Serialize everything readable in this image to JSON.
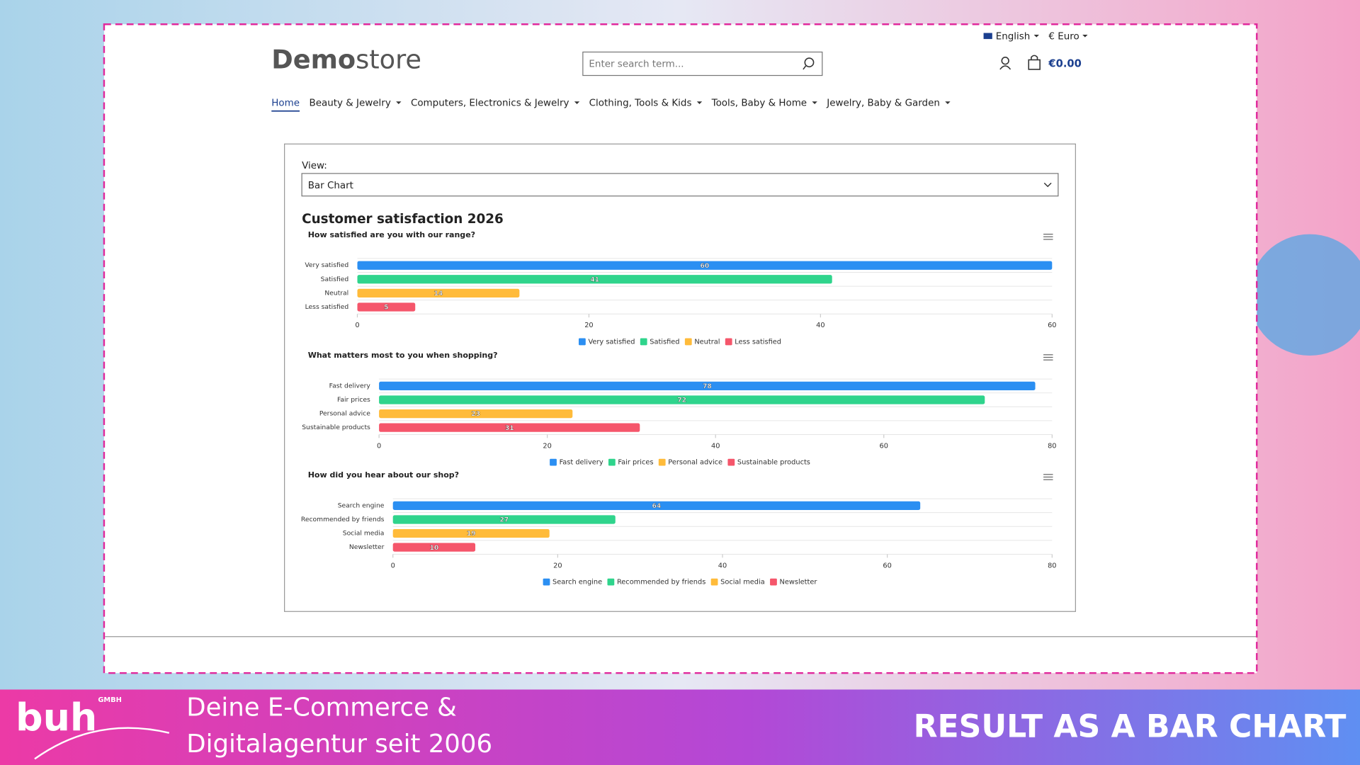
{
  "header": {
    "logo": {
      "bold": "Demo",
      "light": "store"
    },
    "search_placeholder": "Enter search term...",
    "language": "English",
    "currency": "€ Euro",
    "cart_total": "€0.00"
  },
  "nav": {
    "items": [
      "Home",
      "Beauty & Jewelry",
      "Computers, Electronics & Jewelry",
      "Clothing, Tools & Kids",
      "Tools, Baby & Home",
      "Jewelry, Baby & Garden"
    ]
  },
  "view": {
    "label": "View:",
    "selected": "Bar Chart"
  },
  "heading": "Customer satisfaction 2026",
  "chart_data": [
    {
      "type": "bar",
      "orientation": "horizontal",
      "title": "How satisfied are you with our range?",
      "categories": [
        "Very satisfied",
        "Satisfied",
        "Neutral",
        "Less satisfied"
      ],
      "values": [
        60,
        41,
        14,
        5
      ],
      "colors": [
        "#2b8ff2",
        "#2fd48c",
        "#ffbb3a",
        "#f5566b"
      ],
      "xlim": [
        0,
        60
      ],
      "xticks": [
        0,
        20,
        40,
        60
      ],
      "legend": "bottom"
    },
    {
      "type": "bar",
      "orientation": "horizontal",
      "title": "What matters most to you when shopping?",
      "categories": [
        "Fast delivery",
        "Fair prices",
        "Personal advice",
        "Sustainable products"
      ],
      "values": [
        78,
        72,
        23,
        31
      ],
      "colors": [
        "#2b8ff2",
        "#2fd48c",
        "#ffbb3a",
        "#f5566b"
      ],
      "xlim": [
        0,
        80
      ],
      "xticks": [
        0,
        20,
        40,
        60,
        80
      ],
      "legend": "bottom"
    },
    {
      "type": "bar",
      "orientation": "horizontal",
      "title": "How did you hear about our shop?",
      "categories": [
        "Search engine",
        "Recommended by friends",
        "Social media",
        "Newsletter"
      ],
      "values": [
        64,
        27,
        19,
        10
      ],
      "colors": [
        "#2b8ff2",
        "#2fd48c",
        "#ffbb3a",
        "#f5566b"
      ],
      "xlim": [
        0,
        80
      ],
      "xticks": [
        0,
        20,
        40,
        60,
        80
      ],
      "legend": "bottom"
    }
  ],
  "banner": {
    "logo": "buh",
    "logo_suffix": "GMBH",
    "tagline": [
      "Deine E-Commerce &",
      "Digitalagentur seit 2006"
    ],
    "headline": "RESULT AS A BAR CHART"
  }
}
